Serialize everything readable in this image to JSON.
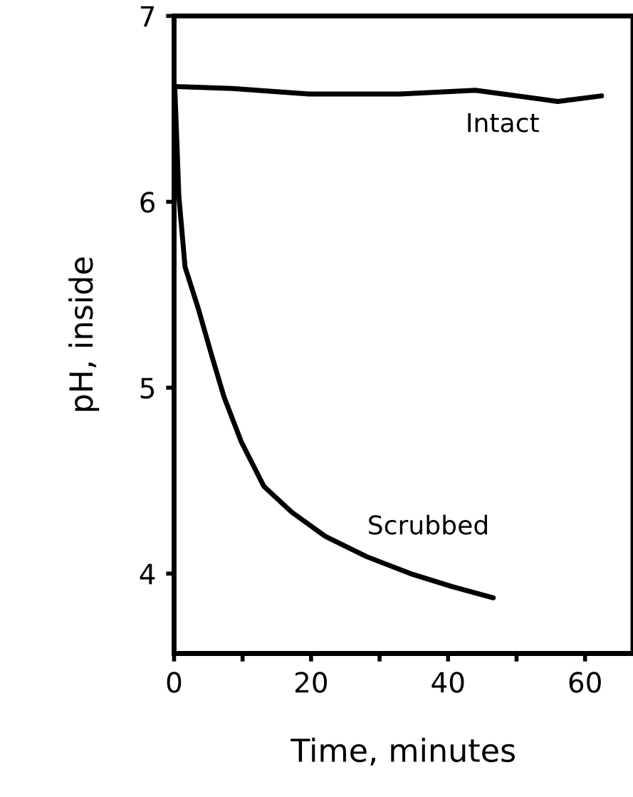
{
  "chart_data": {
    "type": "line",
    "xlabel": "Time, minutes",
    "ylabel": "pH, inside",
    "xlim": [
      0,
      67
    ],
    "ylim": [
      3.57,
      7
    ],
    "xticks": [
      0,
      {
        "value": 10,
        "label": null
      },
      20,
      {
        "value": 30,
        "label": null
      },
      40,
      {
        "value": 50,
        "label": null
      },
      60
    ],
    "yticks": [
      4,
      5,
      6,
      7
    ],
    "grid": false,
    "legend": false,
    "marker": "none",
    "line_style": "solid",
    "series": [
      {
        "name": "Intact",
        "color": "#000000",
        "x": [
          0.1,
          8.5,
          19.7,
          33,
          44,
          56,
          62.4
        ],
        "values": [
          6.62,
          6.61,
          6.58,
          6.58,
          6.6,
          6.54,
          6.57
        ]
      },
      {
        "name": "Scrubbed",
        "color": "#000000",
        "x": [
          0.1,
          0.4,
          0.7,
          1.6,
          3.5,
          5.6,
          7.3,
          9.8,
          13.1,
          17.2,
          22.1,
          28.2,
          34.5,
          40.6,
          46.6
        ],
        "values": [
          6.62,
          6.33,
          6.03,
          5.65,
          5.43,
          5.16,
          4.95,
          4.71,
          4.47,
          4.33,
          4.2,
          4.09,
          4.0,
          3.93,
          3.87
        ]
      }
    ]
  }
}
